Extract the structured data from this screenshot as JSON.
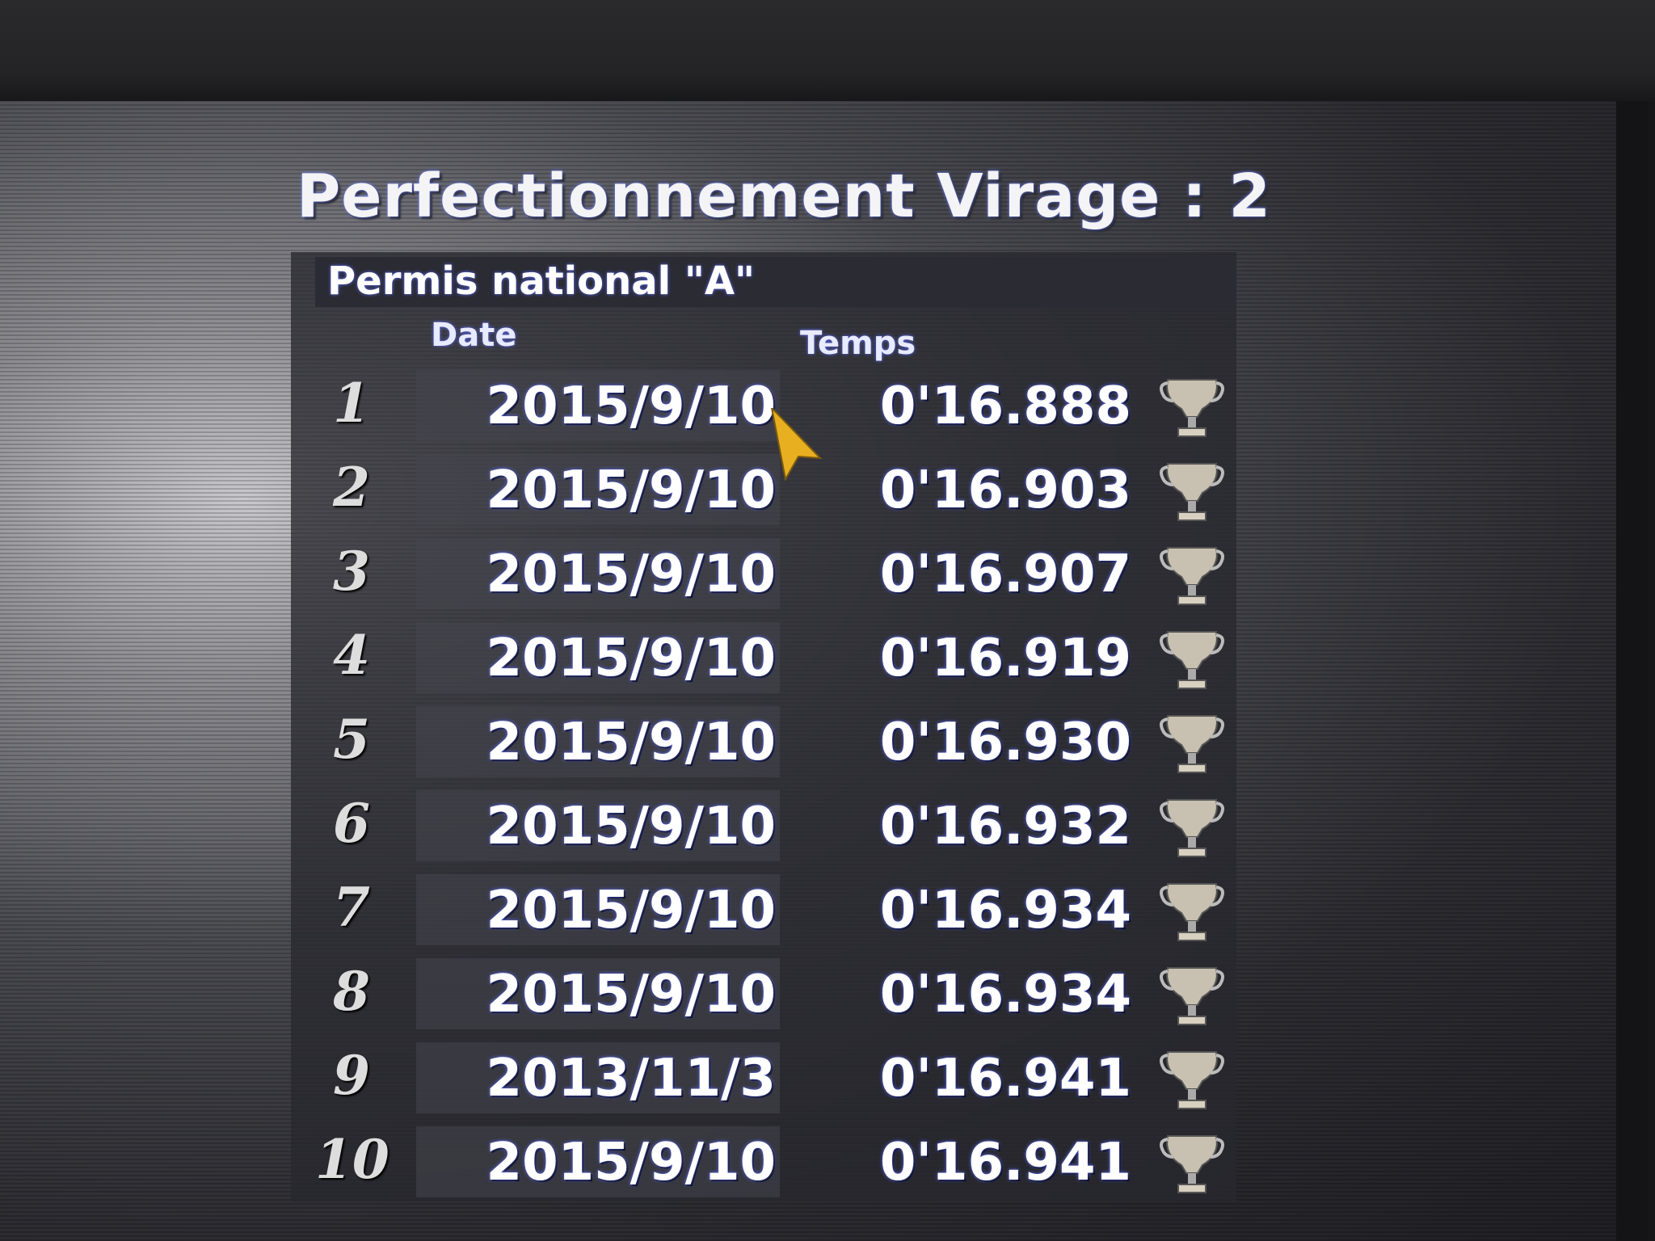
{
  "title": "Perfectionnement Virage : 2",
  "subtitle": "Permis national \"A\"",
  "columns": {
    "date": "Date",
    "time": "Temps"
  },
  "rows": [
    {
      "rank": "1",
      "date": "2015/9/10",
      "time": "0'16.888",
      "icon": "trophy-icon"
    },
    {
      "rank": "2",
      "date": "2015/9/10",
      "time": "0'16.903",
      "icon": "trophy-icon"
    },
    {
      "rank": "3",
      "date": "2015/9/10",
      "time": "0'16.907",
      "icon": "trophy-icon"
    },
    {
      "rank": "4",
      "date": "2015/9/10",
      "time": "0'16.919",
      "icon": "trophy-icon"
    },
    {
      "rank": "5",
      "date": "2015/9/10",
      "time": "0'16.930",
      "icon": "trophy-icon"
    },
    {
      "rank": "6",
      "date": "2015/9/10",
      "time": "0'16.932",
      "icon": "trophy-icon"
    },
    {
      "rank": "7",
      "date": "2015/9/10",
      "time": "0'16.934",
      "icon": "trophy-icon"
    },
    {
      "rank": "8",
      "date": "2015/9/10",
      "time": "0'16.934",
      "icon": "trophy-icon"
    },
    {
      "rank": "9",
      "date": "2013/11/3",
      "time": "0'16.941",
      "icon": "trophy-icon"
    },
    {
      "rank": "10",
      "date": "2015/9/10",
      "time": "0'16.941",
      "icon": "trophy-icon"
    }
  ],
  "colors": {
    "cursor": "#e8b020",
    "trophy": "#c8c0b0",
    "text_glow": "#5a6cff"
  }
}
